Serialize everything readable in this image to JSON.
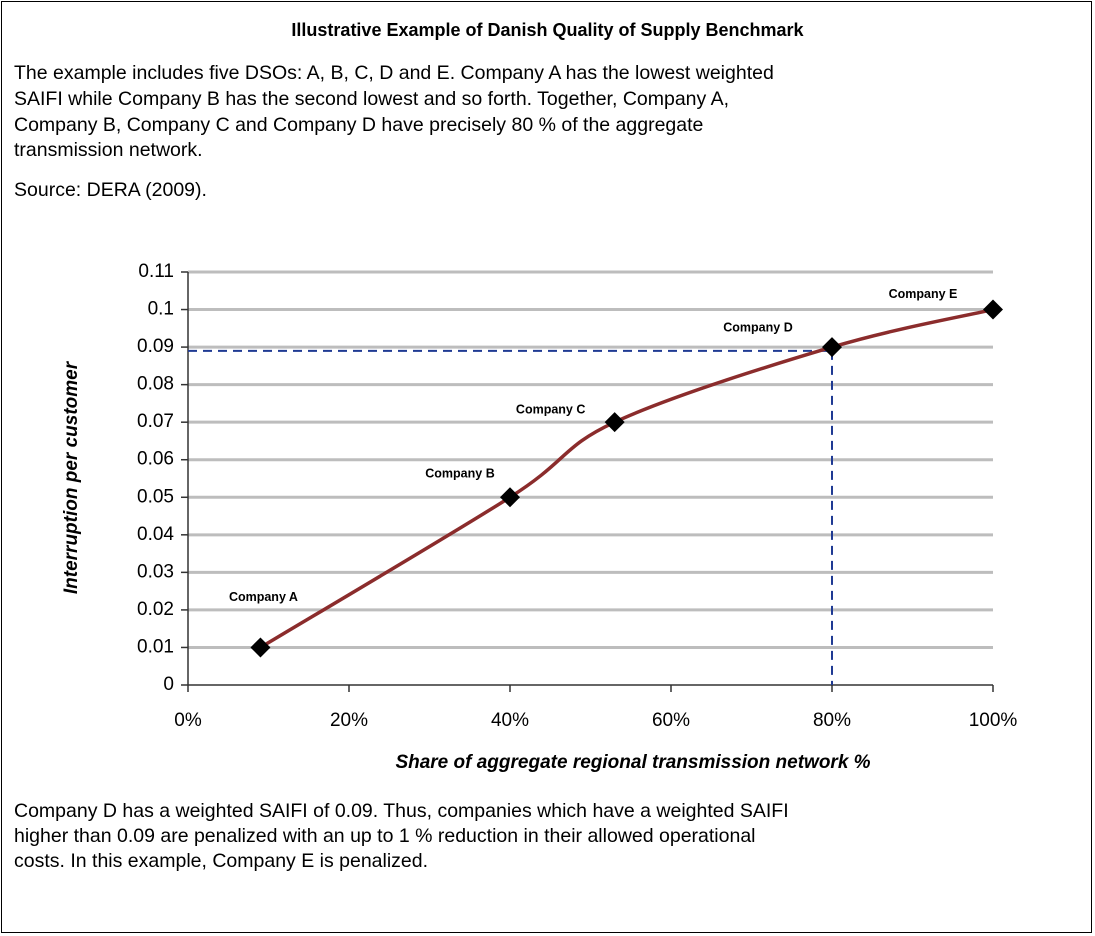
{
  "header": {
    "title": "Illustrative Example of Danish Quality of Supply Benchmark"
  },
  "intro": [
    "The example includes five DSOs: A, B, C, D and E. Company A has the lowest weighted",
    "SAIFI while Company B has the second lowest and so forth. Together, Company A,",
    "Company B, Company C and Company D have precisely 80 % of the aggregate",
    "transmission network."
  ],
  "source": "Source: DERA (2009).",
  "footer": [
    "Company D has a weighted SAIFI of 0.09. Thus, companies which have a weighted SAIFI",
    "higher than 0.09 are penalized with an up to 1 % reduction in their allowed operational",
    "costs. In this example, Company E is penalized."
  ],
  "chart_data": {
    "type": "line",
    "x_label": "Share of aggregate regional transmission network %",
    "y_label": "Interruption per customer",
    "x": [
      9,
      40,
      53,
      80,
      100
    ],
    "values": [
      0.01,
      0.05,
      0.07,
      0.09,
      0.1
    ],
    "point_labels": [
      "Company A",
      "Company B",
      "Company C",
      "Company D",
      "Company E"
    ],
    "color": "#8b2c2c",
    "marker_color": "#000000",
    "reference_lines": {
      "x": 80,
      "y": 0.089,
      "color": "#1f3a93"
    },
    "xlim": [
      0,
      100
    ],
    "xticks": [
      {
        "value": 0,
        "label": "0%"
      },
      {
        "value": 20,
        "label": "20%"
      },
      {
        "value": 40,
        "label": "40%"
      },
      {
        "value": 60,
        "label": "60%"
      },
      {
        "value": 80,
        "label": "80%"
      },
      {
        "value": 100,
        "label": "100%"
      }
    ],
    "ylim": [
      0,
      0.11
    ],
    "yticks": [
      0,
      0.01,
      0.02,
      0.03,
      0.04,
      0.05,
      0.06,
      0.07,
      0.08,
      0.09,
      0.1,
      0.11
    ],
    "grid": true
  }
}
